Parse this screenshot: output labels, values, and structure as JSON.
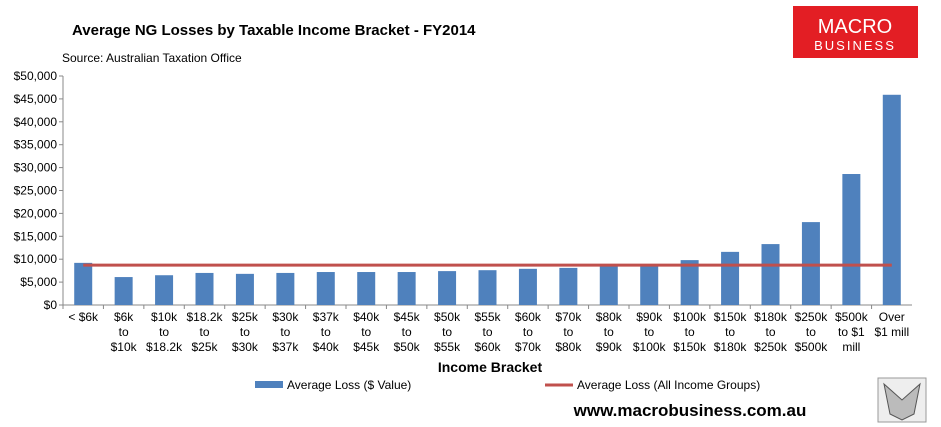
{
  "chart_data": {
    "type": "bar",
    "title": "Average NG Losses by Taxable Income Bracket - FY2014",
    "subtitle": "Source: Australian Taxation Office",
    "x_label": "Income Bracket",
    "logo": [
      "MACRO",
      "BUSINESS"
    ],
    "footer": "www.macrobusiness.com.au",
    "categories": [
      "< $6k",
      "$6k\nto\n$10k",
      "$10k\nto\n$18.2k",
      "$18.2k\nto\n$25k",
      "$25k\nto\n$30k",
      "$30k\nto\n$37k",
      "$37k\nto\n$40k",
      "$40k\nto\n$45k",
      "$45k\nto\n$50k",
      "$50k\nto\n$55k",
      "$55k\nto\n$60k",
      "$60k\nto\n$70k",
      "$70k\nto\n$80k",
      "$80k\nto\n$90k",
      "$90k\nto\n$100k",
      "$100k\nto\n$150k",
      "$150k\nto\n$180k",
      "$180k\nto\n$250k",
      "$250k\nto\n$500k",
      "$500k\nto $1\nmill",
      "Over\n$1 mill"
    ],
    "series": [
      {
        "name": "Average Loss ($ Value)",
        "type": "bar",
        "color": "#4f81bd",
        "values": [
          9200,
          6100,
          6500,
          7000,
          6800,
          7000,
          7200,
          7200,
          7200,
          7400,
          7600,
          7900,
          8100,
          8500,
          8700,
          9800,
          11600,
          13300,
          18100,
          28600,
          45900
        ]
      },
      {
        "name": "Average Loss (All Income Groups)",
        "type": "line",
        "color": "#c0504d",
        "values": [
          8700,
          8700,
          8700,
          8700,
          8700,
          8700,
          8700,
          8700,
          8700,
          8700,
          8700,
          8700,
          8700,
          8700,
          8700,
          8700,
          8700,
          8700,
          8700,
          8700,
          8700
        ]
      }
    ],
    "ylim": [
      0,
      50000
    ],
    "yticks": [
      {
        "value": 0,
        "label": "$0"
      },
      {
        "value": 5000,
        "label": "$5,000"
      },
      {
        "value": 10000,
        "label": "$10,000"
      },
      {
        "value": 15000,
        "label": "$15,000"
      },
      {
        "value": 20000,
        "label": "$20,000"
      },
      {
        "value": 25000,
        "label": "$25,000"
      },
      {
        "value": 30000,
        "label": "$30,000"
      },
      {
        "value": 35000,
        "label": "$35,000"
      },
      {
        "value": 40000,
        "label": "$40,000"
      },
      {
        "value": 45000,
        "label": "$45,000"
      },
      {
        "value": 50000,
        "label": "$50,000"
      }
    ],
    "grid": false,
    "legend": "bottom"
  }
}
